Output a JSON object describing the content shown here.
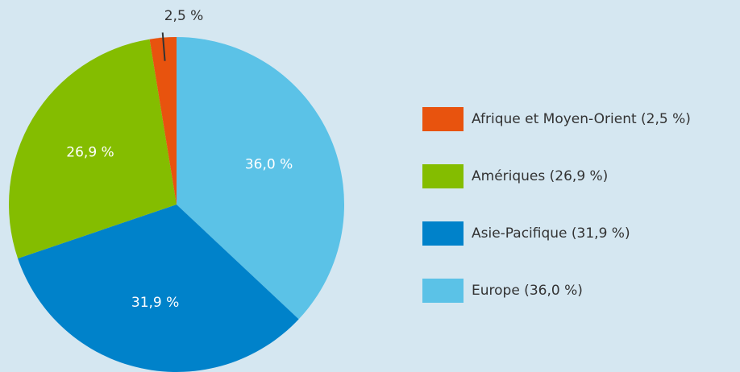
{
  "chart_data": {
    "type": "pie",
    "categories": [
      "Afrique et Moyen-Orient (2,5 %)",
      "Amériques (26,9 %)",
      "Asie-Pacifique (31,9 %)",
      "Europe (36,0 %)"
    ],
    "values": [
      2.5,
      26.9,
      31.9,
      36.0
    ],
    "value_labels": [
      "2,5 %",
      "26,9 %",
      "31,9 %",
      "36,0 %"
    ],
    "colors": [
      "#e8530e",
      "#84bd00",
      "#0082ca",
      "#5bc2e7"
    ]
  }
}
